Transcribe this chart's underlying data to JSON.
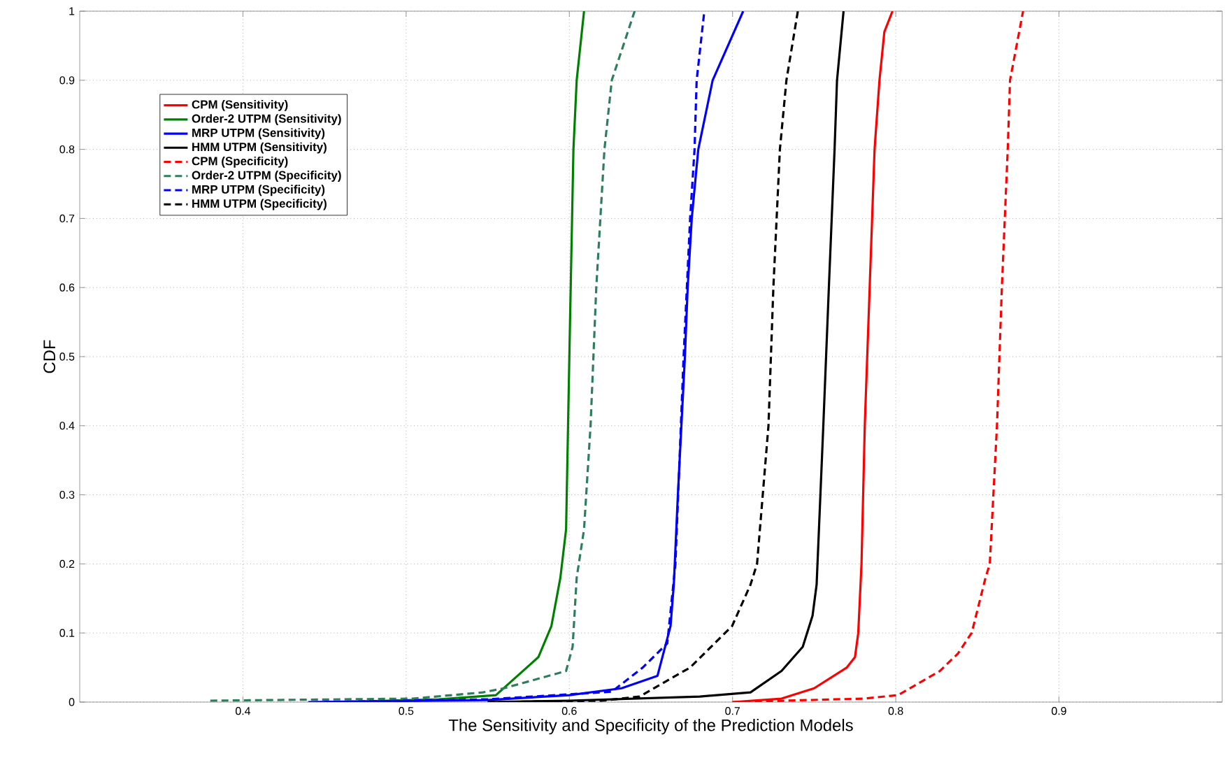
{
  "chart_data": {
    "type": "line",
    "xlabel": "The Sensitivity and Specificity of the Prediction Models",
    "ylabel": "CDF",
    "xlim": [
      0.3,
      1
    ],
    "ylim": [
      0,
      1
    ],
    "xticks": [
      0.4,
      0.5,
      0.6,
      0.7,
      0.8,
      0.9
    ],
    "yticks": [
      0,
      0.1,
      0.2,
      0.3,
      0.4,
      0.5,
      0.6,
      0.7,
      0.8,
      0.9,
      1
    ],
    "grid": true,
    "legend": "top left",
    "marker": "none",
    "series": [
      {
        "name": "CPM (Sensitivity)",
        "color": "#ff0000",
        "line_style": "solid",
        "x": [
          0.7,
          0.73,
          0.75,
          0.77,
          0.775,
          0.777,
          0.779,
          0.781,
          0.784,
          0.787,
          0.79,
          0.793,
          0.798
        ],
        "values": [
          0,
          0.005,
          0.02,
          0.05,
          0.065,
          0.1,
          0.2,
          0.4,
          0.6,
          0.8,
          0.9,
          0.97,
          1
        ]
      },
      {
        "name": "Order-2 UTPM (Sensitivity)",
        "color": "#008000",
        "line_style": "solid",
        "x": [
          0.46,
          0.52,
          0.555,
          0.581,
          0.589,
          0.5945,
          0.598,
          0.6,
          0.6025,
          0.6045,
          0.609
        ],
        "values": [
          0,
          0.004,
          0.01,
          0.065,
          0.11,
          0.18,
          0.25,
          0.5,
          0.8,
          0.9,
          1
        ]
      },
      {
        "name": "MRP UTPM (Sensitivity)",
        "color": "#0000ff",
        "line_style": "solid",
        "x": [
          0.44,
          0.55,
          0.6,
          0.632,
          0.654,
          0.662,
          0.664,
          0.6665,
          0.6708,
          0.6725,
          0.675,
          0.679,
          0.6878,
          0.7065
        ],
        "values": [
          0,
          0.003,
          0.01,
          0.02,
          0.038,
          0.11,
          0.17,
          0.3,
          0.5,
          0.6,
          0.7,
          0.8,
          0.9,
          1
        ]
      },
      {
        "name": "HMM UTPM (Sensitivity)",
        "color": "#000000",
        "line_style": "solid",
        "x": [
          0.55,
          0.6,
          0.68,
          0.711,
          0.73,
          0.743,
          0.749,
          0.7515,
          0.7556,
          0.759,
          0.7625,
          0.764,
          0.768
        ],
        "values": [
          0,
          0.002,
          0.008,
          0.014,
          0.045,
          0.08,
          0.125,
          0.17,
          0.4,
          0.6,
          0.8,
          0.9,
          1
        ]
      },
      {
        "name": "CPM (Specificity)",
        "color": "#ff0000",
        "line_style": "dashed",
        "x": [
          0.7,
          0.78,
          0.8015,
          0.827,
          0.838,
          0.8465,
          0.855,
          0.8576,
          0.862,
          0.865,
          0.8686,
          0.87,
          0.878
        ],
        "values": [
          0,
          0.005,
          0.01,
          0.045,
          0.07,
          0.1,
          0.18,
          0.2,
          0.4,
          0.6,
          0.8,
          0.9,
          1
        ]
      },
      {
        "name": "Order-2 UTPM (Specificity)",
        "color": "#2e7d5b",
        "line_style": "dashed",
        "x": [
          0.38,
          0.504,
          0.547,
          0.56,
          0.598,
          0.602,
          0.6045,
          0.609,
          0.613,
          0.6165,
          0.6215,
          0.626,
          0.64
        ],
        "values": [
          0.002,
          0.005,
          0.014,
          0.02,
          0.045,
          0.08,
          0.18,
          0.25,
          0.4,
          0.6,
          0.8,
          0.9,
          1
        ]
      },
      {
        "name": "MRP UTPM (Specificity)",
        "color": "#0000ff",
        "line_style": "dashed",
        "x": [
          0.45,
          0.55,
          0.626,
          0.645,
          0.66,
          0.665,
          0.67,
          0.674,
          0.6767,
          0.678,
          0.6827
        ],
        "values": [
          0,
          0.004,
          0.015,
          0.05,
          0.085,
          0.2,
          0.5,
          0.7,
          0.8,
          0.9,
          1
        ]
      },
      {
        "name": "HMM UTPM (Specificity)",
        "color": "#000000",
        "line_style": "dashed",
        "x": [
          0.55,
          0.62,
          0.643,
          0.674,
          0.6997,
          0.711,
          0.715,
          0.722,
          0.725,
          0.729,
          0.733,
          0.74
        ],
        "values": [
          0,
          0.002,
          0.008,
          0.05,
          0.11,
          0.17,
          0.2,
          0.4,
          0.6,
          0.8,
          0.9,
          1
        ]
      }
    ]
  }
}
